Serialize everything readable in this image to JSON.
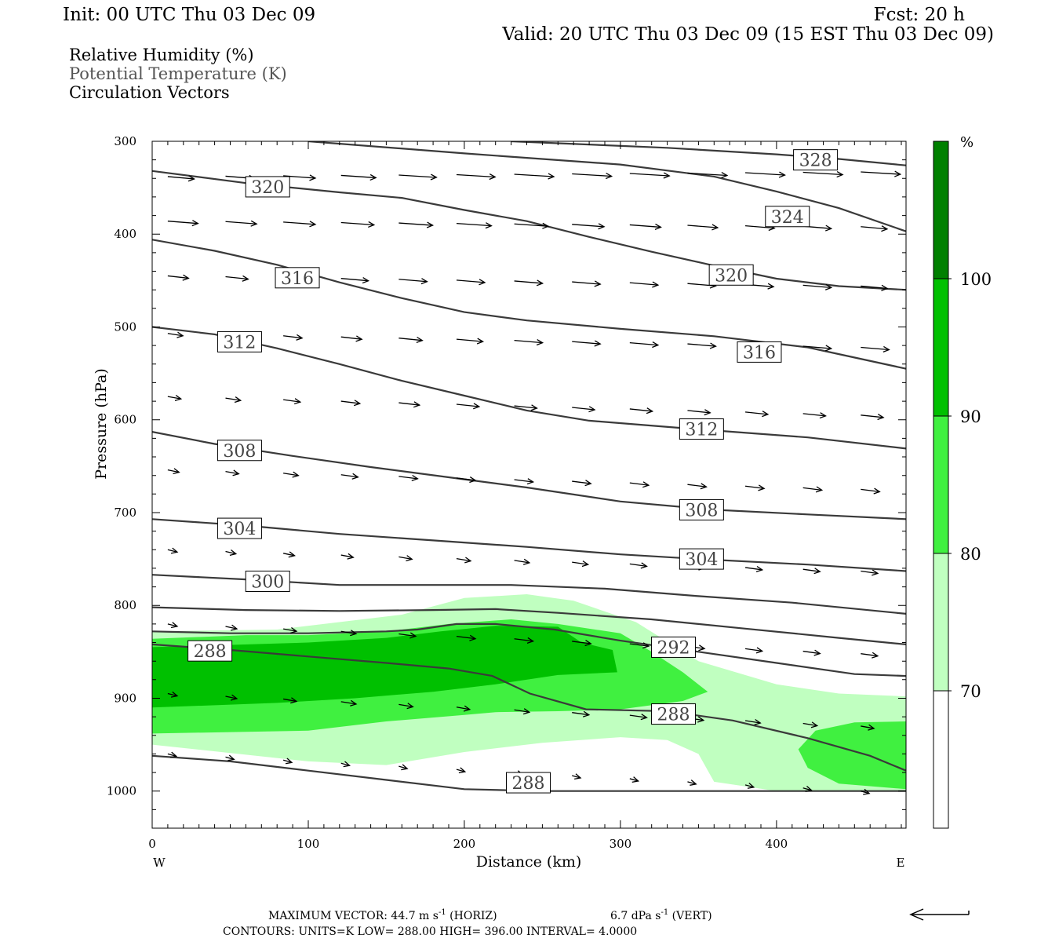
{
  "header": {
    "init": "Init: 00 UTC Thu 03 Dec 09",
    "fcst": "Fcst:   20 h",
    "valid": "Valid: 20 UTC Thu 03 Dec 09 (15 EST Thu 03 Dec 09)"
  },
  "legend_lines": [
    {
      "text": "Relative Humidity (%)",
      "color": "#000000"
    },
    {
      "text": "Potential Temperature (K)",
      "color": "#555555"
    },
    {
      "text": "Circulation Vectors",
      "color": "#000000"
    }
  ],
  "chart_data": {
    "type": "cross-section",
    "xlabel": "Distance (km)",
    "ylabel": "Pressure (hPa)",
    "xlim": [
      0,
      483
    ],
    "ylim": [
      1040,
      300
    ],
    "x_ticks": [
      0,
      100,
      200,
      300,
      400
    ],
    "y_ticks": [
      300,
      400,
      500,
      600,
      700,
      800,
      900,
      1000
    ],
    "x_end_labels": {
      "left": "W",
      "right": "E"
    },
    "colorbar": {
      "unit": "%",
      "levels": [
        70,
        80,
        90,
        100
      ],
      "colors": [
        "#ffffff",
        "#c0ffc0",
        "#40f040",
        "#00c000",
        "#008000"
      ]
    },
    "rh_filled": [
      {
        "level": 70,
        "color": "#c0ffc0",
        "points": [
          [
            0,
            828
          ],
          [
            80,
            826
          ],
          [
            160,
            810
          ],
          [
            200,
            792
          ],
          [
            240,
            788
          ],
          [
            270,
            795
          ],
          [
            310,
            818
          ],
          [
            350,
            860
          ],
          [
            400,
            885
          ],
          [
            440,
            895
          ],
          [
            483,
            898
          ],
          [
            483,
            1000
          ],
          [
            440,
            1000
          ],
          [
            400,
            1000
          ],
          [
            380,
            995
          ],
          [
            360,
            990
          ],
          [
            350,
            960
          ],
          [
            330,
            945
          ],
          [
            300,
            942
          ],
          [
            250,
            948
          ],
          [
            200,
            958
          ],
          [
            150,
            972
          ],
          [
            100,
            968
          ],
          [
            0,
            950
          ]
        ]
      },
      {
        "level": 80,
        "color": "#40f040",
        "points": [
          [
            0,
            836
          ],
          [
            60,
            832
          ],
          [
            100,
            832
          ],
          [
            150,
            828
          ],
          [
            190,
            820
          ],
          [
            230,
            815
          ],
          [
            260,
            820
          ],
          [
            300,
            830
          ],
          [
            320,
            850
          ],
          [
            340,
            872
          ],
          [
            356,
            893
          ],
          [
            340,
            903
          ],
          [
            300,
            912
          ],
          [
            260,
            914
          ],
          [
            220,
            915
          ],
          [
            200,
            918
          ],
          [
            150,
            925
          ],
          [
            100,
            935
          ],
          [
            0,
            938
          ]
        ]
      },
      {
        "level": 80,
        "color": "#40f040",
        "points": [
          [
            483,
            925
          ],
          [
            450,
            926
          ],
          [
            425,
            935
          ],
          [
            414,
            955
          ],
          [
            420,
            975
          ],
          [
            440,
            992
          ],
          [
            483,
            998
          ]
        ]
      },
      {
        "level": 90,
        "color": "#00c000",
        "points": [
          [
            0,
            845
          ],
          [
            40,
            843
          ],
          [
            100,
            840
          ],
          [
            150,
            835
          ],
          [
            185,
            828
          ],
          [
            220,
            822
          ],
          [
            260,
            823
          ],
          [
            275,
            840
          ],
          [
            295,
            848
          ],
          [
            298,
            872
          ],
          [
            260,
            875
          ],
          [
            220,
            885
          ],
          [
            180,
            893
          ],
          [
            130,
            900
          ],
          [
            80,
            905
          ],
          [
            0,
            910
          ]
        ]
      }
    ],
    "theta_contours": [
      {
        "value": 288,
        "points": [
          [
            0,
            962
          ],
          [
            50,
            968
          ],
          [
            100,
            978
          ],
          [
            150,
            988
          ],
          [
            200,
            998
          ],
          [
            250,
            1000
          ],
          [
            300,
            1000
          ],
          [
            350,
            1000
          ],
          [
            400,
            1000
          ],
          [
            483,
            1000
          ]
        ]
      },
      {
        "value": 288,
        "points": [
          [
            0,
            842
          ],
          [
            50,
            848
          ],
          [
            100,
            855
          ],
          [
            150,
            862
          ],
          [
            190,
            868
          ],
          [
            218,
            876
          ],
          [
            242,
            895
          ],
          [
            278,
            912
          ],
          [
            330,
            914
          ],
          [
            372,
            924
          ],
          [
            420,
            943
          ],
          [
            460,
            962
          ],
          [
            483,
            978
          ]
        ]
      },
      {
        "value": 292,
        "points": [
          [
            0,
            828
          ],
          [
            50,
            830
          ],
          [
            100,
            830
          ],
          [
            150,
            828
          ],
          [
            170,
            826
          ],
          [
            195,
            820
          ],
          [
            220,
            820
          ],
          [
            258,
            826
          ],
          [
            300,
            838
          ],
          [
            350,
            850
          ],
          [
            400,
            862
          ],
          [
            450,
            874
          ],
          [
            483,
            876
          ]
        ]
      },
      {
        "value": 296,
        "points": [
          [
            0,
            802
          ],
          [
            60,
            805
          ],
          [
            120,
            806
          ],
          [
            180,
            805
          ],
          [
            220,
            804
          ],
          [
            260,
            808
          ],
          [
            320,
            815
          ],
          [
            380,
            825
          ],
          [
            440,
            835
          ],
          [
            483,
            842
          ]
        ]
      },
      {
        "value": 300,
        "points": [
          [
            0,
            767
          ],
          [
            60,
            772
          ],
          [
            120,
            778
          ],
          [
            180,
            778
          ],
          [
            230,
            778
          ],
          [
            290,
            782
          ],
          [
            350,
            790
          ],
          [
            410,
            797
          ],
          [
            483,
            809
          ]
        ]
      },
      {
        "value": 304,
        "points": [
          [
            0,
            707
          ],
          [
            60,
            714
          ],
          [
            120,
            723
          ],
          [
            180,
            730
          ],
          [
            240,
            737
          ],
          [
            300,
            745
          ],
          [
            350,
            750
          ],
          [
            420,
            756
          ],
          [
            483,
            763
          ]
        ]
      },
      {
        "value": 308,
        "points": [
          [
            0,
            613
          ],
          [
            40,
            626
          ],
          [
            90,
            639
          ],
          [
            140,
            651
          ],
          [
            190,
            662
          ],
          [
            240,
            673
          ],
          [
            300,
            688
          ],
          [
            360,
            697
          ],
          [
            420,
            702
          ],
          [
            483,
            707
          ]
        ]
      },
      {
        "value": 312,
        "points": [
          [
            0,
            500
          ],
          [
            40,
            508
          ],
          [
            80,
            523
          ],
          [
            120,
            540
          ],
          [
            160,
            558
          ],
          [
            200,
            574
          ],
          [
            240,
            590
          ],
          [
            280,
            601
          ],
          [
            340,
            609
          ],
          [
            420,
            619
          ],
          [
            483,
            631
          ]
        ]
      },
      {
        "value": 316,
        "points": [
          [
            0,
            406
          ],
          [
            40,
            418
          ],
          [
            80,
            433
          ],
          [
            120,
            452
          ],
          [
            160,
            469
          ],
          [
            200,
            484
          ],
          [
            240,
            493
          ],
          [
            300,
            502
          ],
          [
            360,
            510
          ],
          [
            420,
            522
          ],
          [
            483,
            545
          ]
        ]
      },
      {
        "value": 320,
        "points": [
          [
            0,
            332
          ],
          [
            60,
            345
          ],
          [
            120,
            355
          ],
          [
            160,
            361
          ],
          [
            200,
            374
          ],
          [
            240,
            386
          ],
          [
            280,
            403
          ],
          [
            320,
            419
          ],
          [
            360,
            434
          ],
          [
            400,
            448
          ],
          [
            440,
            456
          ],
          [
            483,
            460
          ]
        ]
      },
      {
        "value": 324,
        "points": [
          [
            100,
            300
          ],
          [
            200,
            313
          ],
          [
            300,
            325
          ],
          [
            360,
            338
          ],
          [
            400,
            354
          ],
          [
            440,
            372
          ],
          [
            483,
            397
          ]
        ]
      },
      {
        "value": 328,
        "points": [
          [
            230,
            300
          ],
          [
            330,
            307
          ],
          [
            400,
            314
          ],
          [
            440,
            319
          ],
          [
            483,
            326
          ]
        ]
      }
    ],
    "contour_labels": [
      {
        "value": 328,
        "x": 425,
        "p": 320
      },
      {
        "value": 320,
        "x": 74,
        "p": 349
      },
      {
        "value": 324,
        "x": 407,
        "p": 381
      },
      {
        "value": 316,
        "x": 93,
        "p": 447
      },
      {
        "value": 320,
        "x": 371,
        "p": 444
      },
      {
        "value": 312,
        "x": 56,
        "p": 516
      },
      {
        "value": 316,
        "x": 389,
        "p": 527
      },
      {
        "value": 308,
        "x": 56,
        "p": 633
      },
      {
        "value": 312,
        "x": 352,
        "p": 610
      },
      {
        "value": 308,
        "x": 352,
        "p": 697
      },
      {
        "value": 304,
        "x": 56,
        "p": 717
      },
      {
        "value": 304,
        "x": 352,
        "p": 750
      },
      {
        "value": 300,
        "x": 74,
        "p": 774
      },
      {
        "value": 292,
        "x": 334,
        "p": 845
      },
      {
        "value": 288,
        "x": 37,
        "p": 849
      },
      {
        "value": 288,
        "x": 334,
        "p": 917
      },
      {
        "value": 288,
        "x": 241,
        "p": 991
      }
    ],
    "vectors": [
      {
        "p": 335,
        "y_start": 338,
        "y_end": 333,
        "xs": [
          10,
          47,
          84,
          121,
          158,
          195,
          232,
          269,
          306,
          343,
          380,
          417,
          454
        ],
        "lens": [
          28,
          31,
          34,
          37,
          40,
          41,
          42,
          42,
          42,
          42,
          42,
          42,
          42
        ]
      },
      {
        "p": 389,
        "y_start": 386,
        "y_end": 392,
        "xs": [
          10,
          47,
          84,
          121,
          158,
          195,
          232,
          269,
          306,
          343,
          380,
          417,
          454
        ],
        "lens": [
          32,
          33,
          34,
          35,
          36,
          37,
          36,
          34,
          33,
          32,
          31,
          30,
          28
        ]
      },
      {
        "p": 451,
        "y_start": 445,
        "y_end": 456,
        "xs": [
          10,
          47,
          84,
          121,
          158,
          195,
          232,
          269,
          306,
          343,
          380,
          417,
          454
        ],
        "lens": [
          22,
          24,
          27,
          29,
          30,
          30,
          30,
          30,
          30,
          30,
          30,
          30,
          28
        ]
      },
      {
        "p": 518,
        "y_start": 507,
        "y_end": 522,
        "xs": [
          10,
          47,
          84,
          121,
          158,
          195,
          232,
          269,
          306,
          343,
          380,
          417,
          454
        ],
        "lens": [
          16,
          18,
          20,
          22,
          25,
          28,
          30,
          30,
          30,
          30,
          30,
          30,
          30
        ]
      },
      {
        "p": 580,
        "y_start": 575,
        "y_end": 595,
        "xs": [
          10,
          47,
          84,
          121,
          158,
          195,
          232,
          269,
          306,
          343,
          380,
          417,
          454
        ],
        "lens": [
          14,
          16,
          18,
          20,
          22,
          24,
          24,
          24,
          24,
          24,
          24,
          24,
          24
        ]
      },
      {
        "p": 665,
        "y_start": 654,
        "y_end": 675,
        "xs": [
          10,
          47,
          84,
          121,
          158,
          195,
          232,
          269,
          306,
          343,
          380,
          417,
          454
        ],
        "lens": [
          12,
          14,
          16,
          18,
          20,
          20,
          20,
          20,
          20,
          20,
          20,
          20,
          20
        ]
      },
      {
        "p": 752,
        "y_start": 740,
        "y_end": 763,
        "xs": [
          10,
          47,
          84,
          121,
          158,
          195,
          232,
          269,
          306,
          343,
          380,
          417,
          454
        ],
        "lens": [
          10,
          11,
          12,
          13,
          14,
          15,
          16,
          17,
          18,
          18,
          18,
          18,
          18
        ]
      },
      {
        "p": 840,
        "y_start": 820,
        "y_end": 852,
        "xs": [
          10,
          47,
          84,
          121,
          158,
          195,
          232,
          269,
          306,
          343,
          380,
          417,
          454
        ],
        "lens": [
          10,
          12,
          14,
          16,
          18,
          20,
          20,
          20,
          20,
          18,
          18,
          18,
          18
        ]
      },
      {
        "p": 912,
        "y_start": 895,
        "y_end": 930,
        "xs": [
          10,
          47,
          84,
          121,
          158,
          195,
          232,
          269,
          306,
          343,
          380,
          417,
          454
        ],
        "lens": [
          10,
          12,
          14,
          16,
          15,
          14,
          16,
          18,
          18,
          17,
          16,
          15,
          14
        ]
      },
      {
        "p": 985,
        "y_start": 960,
        "y_end": 1000,
        "xs": [
          10,
          47,
          84,
          121,
          158,
          195,
          232,
          269,
          306,
          343,
          380,
          417,
          454
        ],
        "lens": [
          9,
          9,
          9,
          9,
          9,
          9,
          9,
          9,
          9,
          9,
          9,
          9,
          9
        ]
      }
    ]
  },
  "footer": {
    "max_vector_prefix": "MAXIMUM VECTOR:  44.7 m s",
    "horiz_suffix": " (HORIZ)",
    "vert_prefix": "6.7 dPa s",
    "vert_suffix": " (VERT)",
    "superscript": "-1",
    "contours": "CONTOURS:  UNITS=K  LOW=  288.00        HIGH=  396.00        INTERVAL=    4.0000"
  }
}
